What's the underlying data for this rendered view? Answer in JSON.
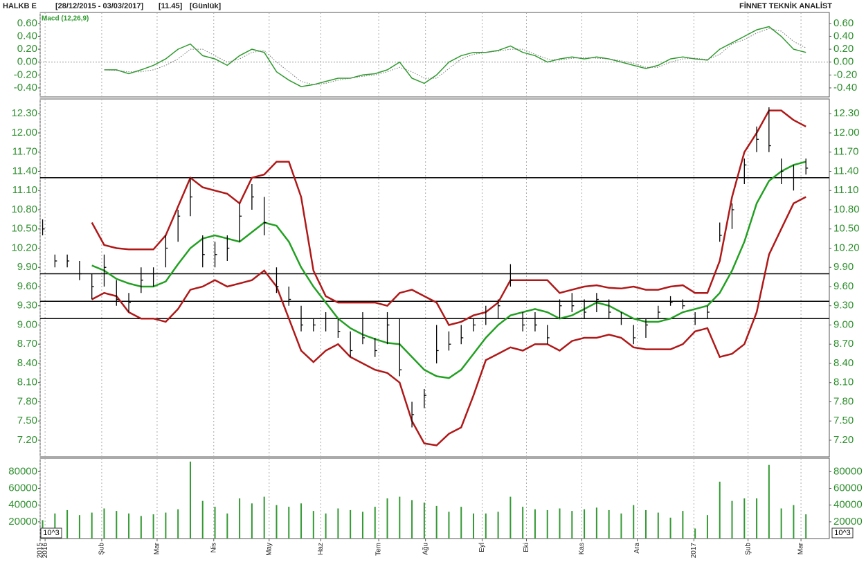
{
  "header": {
    "symbol": "HALKB E",
    "range": "[28/12/2015 - 03/03/2017]",
    "last": "[11.45]",
    "period": "[Günlük]",
    "brand": "FİNNET TEKNİK ANALİST"
  },
  "chart_data": [
    {
      "type": "line",
      "title": "Macd (12,26,9)",
      "ylim": [
        -0.54,
        0.77
      ],
      "yticks": [
        {
          "value": -0.4,
          "label": "-0.40"
        },
        {
          "value": -0.2,
          "label": "-0.20"
        },
        {
          "value": 0,
          "label": "0.00"
        },
        {
          "value": 0.2,
          "label": "0.20"
        },
        {
          "value": 0.4,
          "label": "0.40"
        },
        {
          "value": 0.6,
          "label": "0.60"
        }
      ],
      "series": [
        {
          "color": "#2e9b2e",
          "values": [
            null,
            null,
            null,
            null,
            null,
            -0.12,
            -0.12,
            -0.18,
            -0.12,
            -0.05,
            0.05,
            0.2,
            0.28,
            0.1,
            0.05,
            -0.05,
            0.1,
            0.2,
            0.15,
            -0.15,
            -0.28,
            -0.38,
            -0.35,
            -0.3,
            -0.25,
            -0.25,
            -0.2,
            -0.18,
            -0.12,
            0,
            -0.25,
            -0.33,
            -0.2,
            0,
            0.1,
            0.15,
            0.15,
            0.18,
            0.25,
            0.15,
            0.1,
            0,
            0.05,
            0.08,
            0.05,
            0.08,
            0.05,
            0,
            -0.05,
            -0.1,
            -0.05,
            0.05,
            0.08,
            0.05,
            0.03,
            0.2,
            0.3,
            0.4,
            0.5,
            0.55,
            0.4,
            0.2,
            0.15
          ]
        },
        {
          "color": "#777777",
          "dashed": true,
          "values": [
            null,
            null,
            null,
            null,
            null,
            -0.12,
            -0.13,
            -0.15,
            -0.15,
            -0.12,
            -0.05,
            0.05,
            0.2,
            0.2,
            0.1,
            0,
            0.05,
            0.15,
            0.18,
            0,
            -0.15,
            -0.3,
            -0.35,
            -0.33,
            -0.28,
            -0.25,
            -0.22,
            -0.2,
            -0.15,
            -0.08,
            -0.15,
            -0.25,
            -0.25,
            -0.1,
            0.05,
            0.12,
            0.15,
            0.17,
            0.2,
            0.2,
            0.12,
            0.05,
            0.03,
            0.06,
            0.07,
            0.06,
            0.05,
            0.02,
            -0.02,
            -0.08,
            -0.08,
            0,
            0.05,
            0.06,
            0.04,
            0.12,
            0.28,
            0.35,
            0.45,
            0.52,
            0.48,
            0.32,
            0.22
          ]
        }
      ]
    },
    {
      "type": "ohlc",
      "color": "#000000",
      "ylim": [
        6.94,
        12.53
      ],
      "yticks": [
        {
          "value": 7.2,
          "label": "7.20"
        },
        {
          "value": 7.5,
          "label": "7.50"
        },
        {
          "value": 7.8,
          "label": "7.80"
        },
        {
          "value": 8.1,
          "label": "8.10"
        },
        {
          "value": 8.4,
          "label": "8.40"
        },
        {
          "value": 8.7,
          "label": "8.70"
        },
        {
          "value": 9.0,
          "label": "9.00"
        },
        {
          "value": 9.3,
          "label": "9.30"
        },
        {
          "value": 9.6,
          "label": "9.60"
        },
        {
          "value": 9.9,
          "label": "9.90"
        },
        {
          "value": 10.2,
          "label": "10.20"
        },
        {
          "value": 10.5,
          "label": "10.50"
        },
        {
          "value": 10.8,
          "label": "10.80"
        },
        {
          "value": 11.1,
          "label": "11.10"
        },
        {
          "value": 11.4,
          "label": "11.40"
        },
        {
          "value": 11.7,
          "label": "11.70"
        },
        {
          "value": 12.0,
          "label": "12.00"
        },
        {
          "value": 12.3,
          "label": "12.30"
        }
      ],
      "high": [
        10.65,
        10.1,
        10.1,
        10.0,
        9.8,
        10.1,
        9.7,
        9.5,
        9.9,
        9.9,
        10.4,
        10.8,
        11.3,
        10.4,
        10.3,
        10.4,
        10.9,
        11.2,
        11.0,
        9.9,
        9.6,
        9.3,
        9.1,
        9.2,
        9.1,
        8.9,
        9.2,
        8.8,
        9.2,
        9.1,
        7.8,
        8.0,
        9.0,
        8.9,
        9.0,
        9.1,
        9.3,
        9.4,
        9.95,
        9.2,
        9.2,
        9.0,
        9.4,
        9.5,
        9.4,
        9.5,
        9.4,
        9.2,
        9.0,
        9.1,
        9.3,
        9.45,
        9.4,
        9.2,
        9.3,
        10.6,
        10.9,
        11.6,
        12.1,
        12.4,
        11.6,
        11.5,
        11.6
      ],
      "low": [
        10.4,
        9.9,
        9.9,
        9.7,
        9.4,
        9.6,
        9.3,
        9.2,
        9.5,
        9.6,
        9.9,
        10.3,
        10.7,
        9.9,
        9.9,
        10.0,
        10.3,
        10.8,
        10.4,
        9.5,
        9.3,
        8.9,
        8.9,
        8.9,
        8.8,
        8.5,
        8.7,
        8.5,
        8.7,
        8.2,
        7.4,
        7.7,
        8.4,
        8.6,
        8.7,
        8.9,
        9.0,
        9.1,
        9.6,
        8.9,
        8.9,
        8.7,
        9.1,
        9.2,
        9.1,
        9.2,
        9.1,
        9.0,
        8.7,
        8.8,
        9.1,
        9.3,
        9.25,
        9.0,
        9.1,
        10.3,
        10.5,
        11.2,
        11.7,
        11.7,
        11.2,
        11.1,
        11.35
      ],
      "close": [
        10.5,
        10.0,
        10.0,
        9.8,
        9.6,
        9.9,
        9.4,
        9.35,
        9.7,
        9.8,
        10.2,
        10.7,
        11.0,
        10.1,
        10.1,
        10.2,
        10.7,
        11.0,
        10.6,
        9.6,
        9.4,
        9.0,
        9.0,
        9.1,
        8.9,
        8.6,
        8.8,
        8.6,
        9.0,
        8.3,
        7.6,
        7.9,
        8.6,
        8.7,
        8.8,
        9.0,
        9.1,
        9.3,
        9.7,
        9.0,
        9.0,
        8.8,
        9.3,
        9.3,
        9.2,
        9.4,
        9.2,
        9.1,
        8.8,
        9.0,
        9.2,
        9.35,
        9.3,
        9.1,
        9.2,
        10.4,
        10.8,
        11.5,
        11.9,
        11.8,
        11.4,
        11.3,
        11.45
      ],
      "series": [
        {
          "color": "#b01818",
          "values": [
            null,
            null,
            null,
            null,
            10.6,
            10.25,
            10.2,
            10.18,
            10.18,
            10.18,
            10.4,
            10.85,
            11.3,
            11.15,
            11.1,
            11.05,
            10.9,
            11.3,
            11.35,
            11.55,
            11.55,
            11.0,
            9.85,
            9.45,
            9.35,
            9.35,
            9.35,
            9.35,
            9.3,
            9.5,
            9.55,
            9.45,
            9.35,
            9.0,
            9.05,
            9.15,
            9.2,
            9.35,
            9.7,
            9.7,
            9.7,
            9.7,
            9.5,
            9.55,
            9.6,
            9.62,
            9.58,
            9.57,
            9.6,
            9.55,
            9.55,
            9.6,
            9.62,
            9.5,
            9.5,
            10.0,
            11.0,
            11.7,
            12.0,
            12.35,
            12.35,
            12.2,
            12.1
          ]
        },
        {
          "color": "#22a022",
          "values": [
            null,
            null,
            null,
            null,
            9.93,
            9.85,
            9.72,
            9.65,
            9.6,
            9.6,
            9.68,
            9.95,
            10.2,
            10.35,
            10.4,
            10.35,
            10.3,
            10.45,
            10.6,
            10.55,
            10.3,
            9.9,
            9.6,
            9.35,
            9.1,
            8.95,
            8.85,
            8.78,
            8.72,
            8.7,
            8.5,
            8.3,
            8.2,
            8.17,
            8.3,
            8.55,
            8.8,
            9.0,
            9.15,
            9.2,
            9.25,
            9.2,
            9.1,
            9.15,
            9.25,
            9.35,
            9.3,
            9.2,
            9.1,
            9.05,
            9.05,
            9.1,
            9.2,
            9.25,
            9.3,
            9.5,
            9.85,
            10.3,
            10.9,
            11.25,
            11.4,
            11.5,
            11.55
          ]
        },
        {
          "color": "#b01818",
          "values": [
            null,
            null,
            null,
            null,
            9.4,
            9.5,
            9.45,
            9.2,
            9.1,
            9.1,
            9.05,
            9.25,
            9.55,
            9.6,
            9.7,
            9.6,
            9.65,
            9.7,
            9.85,
            9.6,
            9.1,
            8.6,
            8.42,
            8.6,
            8.7,
            8.5,
            8.4,
            8.3,
            8.25,
            8.1,
            7.5,
            7.15,
            7.12,
            7.3,
            7.4,
            7.9,
            8.45,
            8.55,
            8.65,
            8.6,
            8.7,
            8.7,
            8.6,
            8.75,
            8.8,
            8.8,
            8.85,
            8.8,
            8.65,
            8.62,
            8.62,
            8.62,
            8.7,
            8.9,
            8.95,
            8.5,
            8.55,
            8.7,
            9.2,
            10.1,
            10.5,
            10.9,
            11.0
          ]
        }
      ],
      "levels": [
        11.3,
        9.8,
        9.37,
        9.1
      ],
      "levels_color": "#000000"
    },
    {
      "type": "bar",
      "color": "#339933",
      "unit": "10^3",
      "ylim": [
        0,
        96000
      ],
      "yticks": [
        20000,
        40000,
        60000,
        80000
      ],
      "values": [
        22000,
        30000,
        34000,
        28000,
        31000,
        36000,
        33000,
        30000,
        27000,
        29000,
        31000,
        35000,
        92000,
        45000,
        38000,
        30000,
        48000,
        42000,
        50000,
        40000,
        38000,
        42000,
        33000,
        30000,
        36000,
        34000,
        32000,
        38000,
        48000,
        50000,
        46000,
        43000,
        39000,
        32000,
        38000,
        30000,
        30000,
        32000,
        50000,
        38000,
        35000,
        34000,
        36000,
        33000,
        35000,
        37000,
        34000,
        30000,
        40000,
        34000,
        31000,
        25000,
        33000,
        12000,
        28000,
        68000,
        45000,
        48000,
        48000,
        88000,
        36000,
        40000,
        29000
      ],
      "xlim": [
        -0.2,
        63.9
      ],
      "xticks": [
        {
          "value": -0.2,
          "label": "2015"
        },
        {
          "value": 0.2,
          "label": "2016"
        },
        {
          "value": 4.8,
          "label": "Şub"
        },
        {
          "value": 9.3,
          "label": "Mar"
        },
        {
          "value": 13.9,
          "label": "Nis"
        },
        {
          "value": 18.4,
          "label": "May"
        },
        {
          "value": 22.6,
          "label": "Haz"
        },
        {
          "value": 27.3,
          "label": "Tem"
        },
        {
          "value": 31.1,
          "label": "Ağu"
        },
        {
          "value": 35.7,
          "label": "Eyl"
        },
        {
          "value": 39.3,
          "label": "Eki"
        },
        {
          "value": 43.8,
          "label": "Kas"
        },
        {
          "value": 48.3,
          "label": "Ara"
        },
        {
          "value": 52.9,
          "label": "2017"
        },
        {
          "value": 57.3,
          "label": "Şub"
        },
        {
          "value": 61.6,
          "label": "Mar"
        }
      ]
    }
  ]
}
